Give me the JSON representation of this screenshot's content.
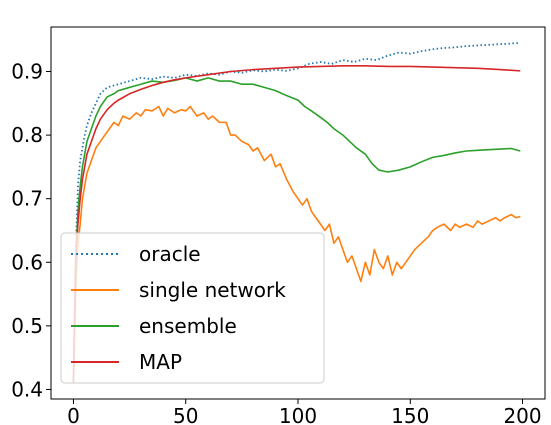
{
  "chart_data": {
    "type": "line",
    "title": "",
    "xlabel": "",
    "ylabel": "",
    "xlim": [
      -10,
      210
    ],
    "ylim": [
      0.385,
      0.97
    ],
    "xticks": [
      0,
      50,
      100,
      150,
      200
    ],
    "yticks": [
      0.4,
      0.5,
      0.6,
      0.7,
      0.8,
      0.9
    ],
    "xtick_labels": [
      "0",
      "50",
      "100",
      "150",
      "200"
    ],
    "ytick_labels": [
      "0.4",
      "0.5",
      "0.6",
      "0.7",
      "0.8",
      "0.9"
    ],
    "grid": false,
    "legend_position": "lower-left",
    "series": [
      {
        "name": "oracle",
        "color": "#1f77b4",
        "style": "dotted",
        "x": [
          0,
          1,
          2,
          3,
          4,
          5,
          6,
          8,
          10,
          12,
          15,
          20,
          25,
          30,
          35,
          40,
          45,
          50,
          55,
          60,
          65,
          70,
          75,
          80,
          85,
          90,
          95,
          100,
          105,
          110,
          115,
          120,
          125,
          130,
          135,
          140,
          145,
          150,
          155,
          160,
          165,
          170,
          175,
          180,
          185,
          190,
          195,
          199
        ],
        "y": [
          0.41,
          0.62,
          0.72,
          0.76,
          0.78,
          0.8,
          0.815,
          0.835,
          0.85,
          0.865,
          0.875,
          0.88,
          0.885,
          0.89,
          0.888,
          0.892,
          0.89,
          0.895,
          0.893,
          0.897,
          0.895,
          0.9,
          0.898,
          0.902,
          0.9,
          0.903,
          0.901,
          0.905,
          0.912,
          0.915,
          0.912,
          0.918,
          0.915,
          0.92,
          0.918,
          0.925,
          0.93,
          0.928,
          0.932,
          0.935,
          0.937,
          0.938,
          0.94,
          0.941,
          0.942,
          0.943,
          0.944,
          0.945
        ]
      },
      {
        "name": "single network",
        "color": "#ff7f0e",
        "style": "solid",
        "x": [
          0,
          1,
          2,
          3,
          4,
          5,
          6,
          8,
          10,
          12,
          14,
          16,
          18,
          20,
          22,
          25,
          28,
          30,
          32,
          35,
          38,
          40,
          42,
          45,
          48,
          50,
          52,
          55,
          58,
          60,
          62,
          65,
          68,
          70,
          72,
          75,
          78,
          80,
          82,
          85,
          88,
          90,
          92,
          95,
          98,
          100,
          102,
          104,
          106,
          108,
          110,
          112,
          114,
          116,
          118,
          120,
          122,
          124,
          126,
          128,
          130,
          132,
          134,
          136,
          138,
          140,
          142,
          144,
          146,
          148,
          150,
          152,
          155,
          158,
          160,
          162,
          165,
          168,
          170,
          172,
          175,
          178,
          180,
          182,
          185,
          188,
          190,
          192,
          195,
          197,
          199
        ],
        "y": [
          0.41,
          0.55,
          0.63,
          0.66,
          0.7,
          0.72,
          0.74,
          0.76,
          0.78,
          0.79,
          0.8,
          0.81,
          0.82,
          0.815,
          0.83,
          0.825,
          0.835,
          0.83,
          0.84,
          0.838,
          0.845,
          0.83,
          0.842,
          0.835,
          0.84,
          0.838,
          0.845,
          0.83,
          0.835,
          0.825,
          0.83,
          0.82,
          0.82,
          0.8,
          0.8,
          0.79,
          0.785,
          0.775,
          0.78,
          0.76,
          0.77,
          0.75,
          0.755,
          0.73,
          0.71,
          0.7,
          0.69,
          0.7,
          0.68,
          0.67,
          0.66,
          0.65,
          0.66,
          0.63,
          0.64,
          0.62,
          0.6,
          0.61,
          0.59,
          0.57,
          0.6,
          0.58,
          0.62,
          0.6,
          0.59,
          0.61,
          0.58,
          0.6,
          0.59,
          0.6,
          0.61,
          0.62,
          0.63,
          0.64,
          0.65,
          0.655,
          0.66,
          0.65,
          0.66,
          0.655,
          0.66,
          0.655,
          0.665,
          0.66,
          0.665,
          0.67,
          0.665,
          0.67,
          0.675,
          0.67,
          0.672
        ]
      },
      {
        "name": "ensemble",
        "color": "#2ca02c",
        "style": "solid",
        "x": [
          0,
          1,
          2,
          3,
          4,
          5,
          6,
          8,
          10,
          12,
          15,
          18,
          20,
          25,
          30,
          35,
          40,
          45,
          50,
          55,
          60,
          65,
          70,
          75,
          80,
          85,
          90,
          95,
          100,
          103,
          106,
          110,
          113,
          116,
          120,
          123,
          126,
          130,
          133,
          136,
          140,
          145,
          150,
          155,
          160,
          165,
          170,
          175,
          180,
          185,
          190,
          195,
          199
        ],
        "y": [
          0.41,
          0.6,
          0.68,
          0.72,
          0.75,
          0.77,
          0.79,
          0.81,
          0.83,
          0.845,
          0.86,
          0.865,
          0.87,
          0.875,
          0.88,
          0.885,
          0.883,
          0.886,
          0.89,
          0.885,
          0.89,
          0.885,
          0.885,
          0.88,
          0.88,
          0.875,
          0.87,
          0.862,
          0.855,
          0.845,
          0.838,
          0.828,
          0.82,
          0.81,
          0.8,
          0.79,
          0.78,
          0.77,
          0.755,
          0.745,
          0.742,
          0.745,
          0.75,
          0.758,
          0.765,
          0.768,
          0.772,
          0.775,
          0.776,
          0.777,
          0.778,
          0.779,
          0.775
        ]
      },
      {
        "name": "MAP",
        "color": "#d62728",
        "style": "solid",
        "x": [
          0,
          1,
          2,
          3,
          4,
          5,
          6,
          8,
          10,
          12,
          15,
          18,
          20,
          25,
          30,
          35,
          40,
          45,
          50,
          60,
          70,
          80,
          90,
          100,
          110,
          120,
          130,
          140,
          150,
          160,
          170,
          180,
          190,
          199
        ],
        "y": [
          0.41,
          0.61,
          0.66,
          0.7,
          0.73,
          0.75,
          0.77,
          0.79,
          0.81,
          0.825,
          0.84,
          0.85,
          0.855,
          0.865,
          0.872,
          0.878,
          0.883,
          0.887,
          0.89,
          0.895,
          0.9,
          0.903,
          0.905,
          0.907,
          0.908,
          0.909,
          0.909,
          0.908,
          0.908,
          0.907,
          0.906,
          0.905,
          0.903,
          0.901
        ]
      }
    ]
  }
}
